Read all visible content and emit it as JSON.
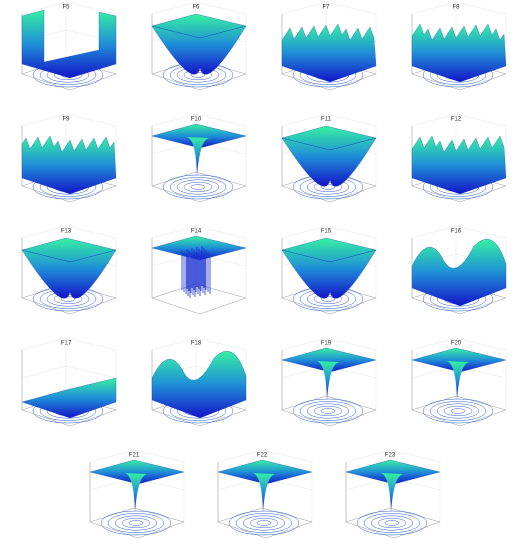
{
  "panels": [
    {
      "title": "F5"
    },
    {
      "title": "F6"
    },
    {
      "title": "F7"
    },
    {
      "title": "F8"
    },
    {
      "title": "F9"
    },
    {
      "title": "F10"
    },
    {
      "title": "F11"
    },
    {
      "title": "F12"
    },
    {
      "title": "F13"
    },
    {
      "title": "F14"
    },
    {
      "title": "F15"
    },
    {
      "title": "F16"
    },
    {
      "title": "F17"
    },
    {
      "title": "F18"
    },
    {
      "title": "F19"
    },
    {
      "title": "F20"
    },
    {
      "title": "F21"
    },
    {
      "title": "F22"
    },
    {
      "title": "F23"
    }
  ]
}
